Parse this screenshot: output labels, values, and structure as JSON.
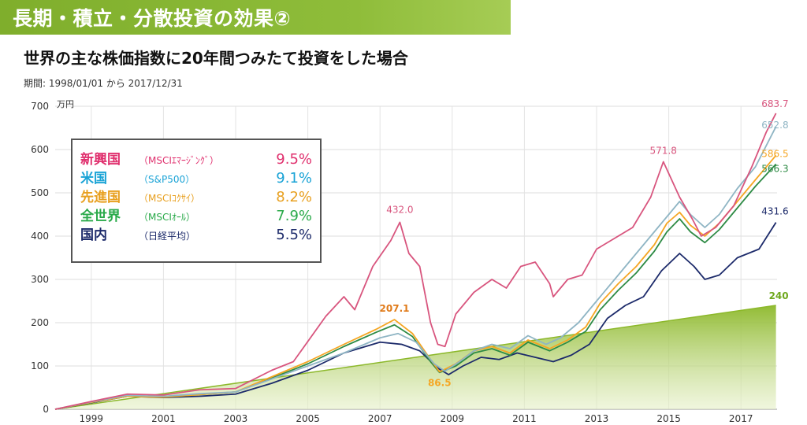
{
  "header": {
    "title": "長期・積立・分散投資の効果②",
    "subtitle": "世界の主な株価指数に20年間つみたて投資をした場合",
    "period": "期間: 1998/01/01 から 2017/12/31"
  },
  "legend": [
    {
      "name": "新興国",
      "index": "（MSCIｴﾏｰｼﾞﾝｸﾞ）",
      "rate": "9.5%",
      "color": "#e0306e"
    },
    {
      "name": "米国",
      "index": "（S&P500）",
      "rate": "9.1%",
      "color": "#1aa3d6"
    },
    {
      "name": "先進国",
      "index": "（MSCIｺｸｻｲ）",
      "rate": "8.2%",
      "color": "#e8a020"
    },
    {
      "name": "全世界",
      "index": "（MSCIｵｰﾙ）",
      "rate": "7.9%",
      "color": "#2aaa4a"
    },
    {
      "name": "国内",
      "index": "（日経平均）",
      "rate": "5.5%",
      "color": "#1c2a6a"
    }
  ],
  "chart_data": {
    "type": "line",
    "ylabel": "万円",
    "ylim": [
      0,
      700
    ],
    "yticks": [
      "0",
      "100",
      "200",
      "300",
      "400",
      "500",
      "600",
      "700"
    ],
    "xlim": [
      1998.0,
      2018.0
    ],
    "xticks": [
      "1999",
      "2001",
      "2003",
      "2005",
      "2007",
      "2009",
      "2011",
      "2013",
      "2015",
      "2017"
    ],
    "grid": true,
    "series": [
      {
        "name": "新興国",
        "color": "#d8557e",
        "points": [
          [
            1998.0,
            0
          ],
          [
            1999.0,
            18
          ],
          [
            2000.0,
            35
          ],
          [
            2001.0,
            33
          ],
          [
            2002.0,
            45
          ],
          [
            2003.0,
            48
          ],
          [
            2004.0,
            90
          ],
          [
            2004.6,
            110
          ],
          [
            2005.5,
            215
          ],
          [
            2006.0,
            260
          ],
          [
            2006.3,
            230
          ],
          [
            2006.8,
            330
          ],
          [
            2007.3,
            390
          ],
          [
            2007.55,
            432
          ],
          [
            2007.8,
            360
          ],
          [
            2008.1,
            330
          ],
          [
            2008.4,
            200
          ],
          [
            2008.6,
            150
          ],
          [
            2008.8,
            145
          ],
          [
            2009.1,
            220
          ],
          [
            2009.6,
            270
          ],
          [
            2010.1,
            300
          ],
          [
            2010.5,
            280
          ],
          [
            2010.9,
            330
          ],
          [
            2011.3,
            340
          ],
          [
            2011.7,
            290
          ],
          [
            2011.8,
            260
          ],
          [
            2012.2,
            300
          ],
          [
            2012.6,
            310
          ],
          [
            2013.0,
            370
          ],
          [
            2013.6,
            400
          ],
          [
            2014.0,
            420
          ],
          [
            2014.5,
            490
          ],
          [
            2014.85,
            571.8
          ],
          [
            2015.3,
            490
          ],
          [
            2015.65,
            440
          ],
          [
            2015.9,
            400
          ],
          [
            2016.3,
            420
          ],
          [
            2016.8,
            470
          ],
          [
            2017.3,
            560
          ],
          [
            2017.7,
            640
          ],
          [
            2017.97,
            683.7
          ]
        ]
      },
      {
        "name": "米国",
        "color": "#8fb5c4",
        "points": [
          [
            1998.0,
            0
          ],
          [
            1999.0,
            17
          ],
          [
            2000.0,
            32
          ],
          [
            2001.0,
            30
          ],
          [
            2002.0,
            36
          ],
          [
            2003.0,
            40
          ],
          [
            2004.0,
            70
          ],
          [
            2005.0,
            100
          ],
          [
            2006.0,
            130
          ],
          [
            2007.0,
            165
          ],
          [
            2007.5,
            175
          ],
          [
            2008.0,
            155
          ],
          [
            2008.5,
            105
          ],
          [
            2008.8,
            88
          ],
          [
            2009.2,
            110
          ],
          [
            2009.6,
            135
          ],
          [
            2010.1,
            150
          ],
          [
            2010.6,
            140
          ],
          [
            2011.1,
            170
          ],
          [
            2011.6,
            150
          ],
          [
            2012.0,
            165
          ],
          [
            2012.5,
            200
          ],
          [
            2013.0,
            250
          ],
          [
            2013.5,
            300
          ],
          [
            2014.0,
            350
          ],
          [
            2014.5,
            400
          ],
          [
            2014.9,
            440
          ],
          [
            2015.3,
            480
          ],
          [
            2015.6,
            450
          ],
          [
            2016.0,
            420
          ],
          [
            2016.4,
            450
          ],
          [
            2016.9,
            510
          ],
          [
            2017.4,
            560
          ],
          [
            2017.97,
            652.8
          ]
        ]
      },
      {
        "name": "先進国",
        "color": "#f5a623",
        "points": [
          [
            1998.0,
            0
          ],
          [
            1999.0,
            16
          ],
          [
            2000.0,
            30
          ],
          [
            2001.0,
            28
          ],
          [
            2002.0,
            34
          ],
          [
            2003.0,
            40
          ],
          [
            2004.0,
            75
          ],
          [
            2005.0,
            110
          ],
          [
            2006.0,
            150
          ],
          [
            2006.9,
            185
          ],
          [
            2007.4,
            207.1
          ],
          [
            2007.9,
            175
          ],
          [
            2008.4,
            115
          ],
          [
            2008.65,
            86.5
          ],
          [
            2009.1,
            105
          ],
          [
            2009.6,
            135
          ],
          [
            2010.1,
            145
          ],
          [
            2010.6,
            130
          ],
          [
            2011.1,
            160
          ],
          [
            2011.7,
            140
          ],
          [
            2012.2,
            160
          ],
          [
            2012.7,
            190
          ],
          [
            2013.1,
            245
          ],
          [
            2013.6,
            290
          ],
          [
            2014.1,
            330
          ],
          [
            2014.6,
            380
          ],
          [
            2014.95,
            430
          ],
          [
            2015.3,
            455
          ],
          [
            2015.6,
            425
          ],
          [
            2016.0,
            400
          ],
          [
            2016.4,
            430
          ],
          [
            2016.9,
            480
          ],
          [
            2017.4,
            530
          ],
          [
            2017.97,
            586.5
          ]
        ]
      },
      {
        "name": "全世界",
        "color": "#2e8b45",
        "points": [
          [
            1998.0,
            0
          ],
          [
            1999.0,
            16
          ],
          [
            2000.0,
            30
          ],
          [
            2001.0,
            28
          ],
          [
            2002.0,
            34
          ],
          [
            2003.0,
            40
          ],
          [
            2004.0,
            72
          ],
          [
            2005.0,
            105
          ],
          [
            2006.0,
            145
          ],
          [
            2006.9,
            178
          ],
          [
            2007.4,
            195
          ],
          [
            2007.9,
            168
          ],
          [
            2008.4,
            110
          ],
          [
            2008.65,
            85
          ],
          [
            2009.1,
            100
          ],
          [
            2009.6,
            130
          ],
          [
            2010.1,
            140
          ],
          [
            2010.6,
            125
          ],
          [
            2011.1,
            155
          ],
          [
            2011.7,
            135
          ],
          [
            2012.2,
            155
          ],
          [
            2012.7,
            180
          ],
          [
            2013.1,
            230
          ],
          [
            2013.6,
            275
          ],
          [
            2014.1,
            315
          ],
          [
            2014.6,
            365
          ],
          [
            2014.95,
            410
          ],
          [
            2015.3,
            440
          ],
          [
            2015.6,
            410
          ],
          [
            2016.0,
            385
          ],
          [
            2016.4,
            415
          ],
          [
            2016.9,
            465
          ],
          [
            2017.4,
            515
          ],
          [
            2017.97,
            566.3
          ]
        ]
      },
      {
        "name": "国内",
        "color": "#1c2a6a",
        "points": [
          [
            1998.0,
            0
          ],
          [
            1999.0,
            15
          ],
          [
            2000.0,
            30
          ],
          [
            2001.0,
            27
          ],
          [
            2002.0,
            30
          ],
          [
            2003.0,
            35
          ],
          [
            2004.0,
            60
          ],
          [
            2005.0,
            90
          ],
          [
            2006.0,
            130
          ],
          [
            2007.0,
            155
          ],
          [
            2007.6,
            150
          ],
          [
            2008.1,
            135
          ],
          [
            2008.6,
            95
          ],
          [
            2008.9,
            80
          ],
          [
            2009.3,
            100
          ],
          [
            2009.8,
            120
          ],
          [
            2010.3,
            115
          ],
          [
            2010.8,
            130
          ],
          [
            2011.3,
            120
          ],
          [
            2011.8,
            110
          ],
          [
            2012.3,
            125
          ],
          [
            2012.8,
            150
          ],
          [
            2013.3,
            210
          ],
          [
            2013.8,
            240
          ],
          [
            2014.3,
            260
          ],
          [
            2014.8,
            320
          ],
          [
            2015.3,
            360
          ],
          [
            2015.7,
            330
          ],
          [
            2016.0,
            300
          ],
          [
            2016.4,
            310
          ],
          [
            2016.9,
            350
          ],
          [
            2017.5,
            370
          ],
          [
            2017.97,
            431.6
          ]
        ]
      },
      {
        "name": "",
        "color": "#8cb82a",
        "points": [
          [
            1998.0,
            0
          ],
          [
            2017.97,
            240
          ]
        ]
      }
    ],
    "annotations": [
      {
        "text": "683.7",
        "x": 2017.97,
        "y": 683.7,
        "color": "#d8557e"
      },
      {
        "text": "652.8",
        "x": 2017.97,
        "y": 652.8,
        "color": "#8fb5c4"
      },
      {
        "text": "586.5",
        "x": 2017.97,
        "y": 586.5,
        "color": "#f5a623"
      },
      {
        "text": "566.3",
        "x": 2017.97,
        "y": 566.3,
        "color": "#2e8b45"
      },
      {
        "text": "431.6",
        "x": 2017.97,
        "y": 431.6,
        "color": "#1c2a6a"
      },
      {
        "text": "571.8",
        "x": 2014.85,
        "y": 571.8,
        "color": "#d8557e"
      },
      {
        "text": "432.0",
        "x": 2007.55,
        "y": 432.0,
        "color": "#d8557e"
      },
      {
        "text": "207.1",
        "x": 2007.4,
        "y": 207.1,
        "color": "#e07b1a"
      },
      {
        "text": "86.5",
        "x": 2008.65,
        "y": 86.5,
        "color": "#f5a623"
      },
      {
        "text": "240",
        "x": 2017.97,
        "y": 240,
        "color": "#6fa81e"
      }
    ]
  }
}
